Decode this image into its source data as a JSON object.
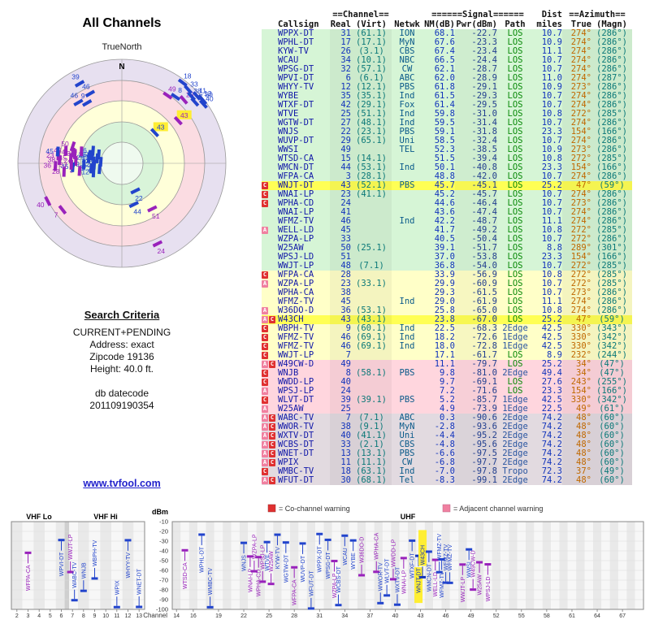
{
  "title": "All Channels",
  "radar": {
    "north_label": "N",
    "orientation_label": "TrueNorth"
  },
  "search_criteria": {
    "heading": "Search Criteria",
    "lines": [
      "CURRENT+PENDING",
      "Address: exact",
      "Zipcode 19136",
      "Height: 40.0 ft."
    ],
    "db_label": "db datecode",
    "db_datecode": "201109190354"
  },
  "link": "www.tvfool.com",
  "legend": {
    "co": "= Co-channel warning",
    "adj": "= Adjacent channel warning"
  },
  "colors": {
    "g": "#d6f5d6",
    "y": "#ffffc8",
    "p": "#ffd6de",
    "x": "#e2dae0",
    "pend": "#ffff55",
    "co": "#e03030",
    "adj": "#f080a0",
    "blue": "#2244cc",
    "purple": "#9922bb",
    "link": "#2222cc",
    "az": "#c06800"
  },
  "table": {
    "group_headers": {
      "channel": "==Channel==",
      "signal": "======Signal======",
      "dist": "Dist",
      "azimuth": "==Azimuth=="
    },
    "columns": {
      "callsign": "Callsign",
      "real": "Real",
      "virt": "(Virt)",
      "netwk": "Netwk",
      "nm": "NM(dB)",
      "pwr": "Pwr(dBm)",
      "path": "Path",
      "miles": "miles",
      "true": "True",
      "magn": "(Magn)"
    },
    "rows": [
      {
        "f": "",
        "c": "WPPX-DT",
        "r": "31",
        "v": "(61.1)",
        "n": "ION",
        "nm": 68.1,
        "p": -22.7,
        "pa": "LOS",
        "mi": "10.7",
        "t": "274°",
        "m": "(286°)"
      },
      {
        "f": "",
        "c": "WPHL-DT",
        "r": "17",
        "v": "(17.1)",
        "n": "MyN",
        "nm": 67.6,
        "p": -23.3,
        "pa": "LOS",
        "mi": "10.9",
        "t": "274°",
        "m": "(286°)"
      },
      {
        "f": "",
        "c": "KYW-TV",
        "r": "26",
        "v": "(3.1)",
        "n": "CBS",
        "nm": 67.4,
        "p": -23.4,
        "pa": "LOS",
        "mi": "11.1",
        "t": "274°",
        "m": "(286°)"
      },
      {
        "f": "",
        "c": "WCAU",
        "r": "34",
        "v": "(10.1)",
        "n": "NBC",
        "nm": 66.5,
        "p": -24.4,
        "pa": "LOS",
        "mi": "10.7",
        "t": "274°",
        "m": "(286°)"
      },
      {
        "f": "",
        "c": "WPSG-DT",
        "r": "32",
        "v": "(57.1)",
        "n": "CW",
        "nm": 62.1,
        "p": -28.7,
        "pa": "LOS",
        "mi": "10.7",
        "t": "274°",
        "m": "(286°)"
      },
      {
        "f": "",
        "c": "WPVI-DT",
        "r": "6",
        "v": "(6.1)",
        "n": "ABC",
        "nm": 62.0,
        "p": -28.9,
        "pa": "LOS",
        "mi": "11.0",
        "t": "274°",
        "m": "(287°)"
      },
      {
        "f": "",
        "c": "WHYY-TV",
        "r": "12",
        "v": "(12.1)",
        "n": "PBS",
        "nm": 61.8,
        "p": -29.1,
        "pa": "LOS",
        "mi": "10.9",
        "t": "273°",
        "m": "(286°)"
      },
      {
        "f": "",
        "c": "WYBE",
        "r": "35",
        "v": "(35.1)",
        "n": "Ind",
        "nm": 61.5,
        "p": -29.3,
        "pa": "LOS",
        "mi": "10.7",
        "t": "274°",
        "m": "(286°)"
      },
      {
        "f": "",
        "c": "WTXF-DT",
        "r": "42",
        "v": "(29.1)",
        "n": "Fox",
        "nm": 61.4,
        "p": -29.5,
        "pa": "LOS",
        "mi": "10.7",
        "t": "274°",
        "m": "(286°)"
      },
      {
        "f": "",
        "c": "WTVE",
        "r": "25",
        "v": "(51.1)",
        "n": "Ind",
        "nm": 59.8,
        "p": -31.0,
        "pa": "LOS",
        "mi": "10.8",
        "t": "272°",
        "m": "(285°)"
      },
      {
        "f": "",
        "c": "WGTW-DT",
        "r": "27",
        "v": "(48.1)",
        "n": "Ind",
        "nm": 59.5,
        "p": -31.4,
        "pa": "LOS",
        "mi": "10.7",
        "t": "274°",
        "m": "(286°)"
      },
      {
        "f": "",
        "c": "WNJS",
        "r": "22",
        "v": "(23.1)",
        "n": "PBS",
        "nm": 59.1,
        "p": -31.8,
        "pa": "LOS",
        "mi": "23.3",
        "t": "154°",
        "m": "(166°)"
      },
      {
        "f": "",
        "c": "WUVP-DT",
        "r": "29",
        "v": "(65.1)",
        "n": "Uni",
        "nm": 58.5,
        "p": -32.4,
        "pa": "LOS",
        "mi": "10.7",
        "t": "274°",
        "m": "(286°)"
      },
      {
        "f": "",
        "c": "WWSI",
        "r": "49",
        "v": "",
        "n": "TEL",
        "nm": 52.3,
        "p": -38.5,
        "pa": "LOS",
        "mi": "10.9",
        "t": "273°",
        "m": "(286°)"
      },
      {
        "f": "",
        "c": "WTSD-CA",
        "r": "15",
        "v": "(14.1)",
        "n": "",
        "nm": 51.5,
        "p": -39.4,
        "pa": "LOS",
        "mi": "10.8",
        "t": "272°",
        "m": "(285°)"
      },
      {
        "f": "",
        "c": "WMCN-DT",
        "r": "44",
        "v": "(53.1)",
        "n": "Ind",
        "nm": 50.1,
        "p": -40.8,
        "pa": "LOS",
        "mi": "23.3",
        "t": "154°",
        "m": "(166°)"
      },
      {
        "f": "",
        "c": "WFPA-CA",
        "r": "3",
        "v": "(28.1)",
        "n": "",
        "nm": 48.8,
        "p": -42.0,
        "pa": "LOS",
        "mi": "10.7",
        "t": "274°",
        "m": "(286°)"
      },
      {
        "f": "C",
        "c": "WNJT-DT",
        "r": "43",
        "v": "(52.1)",
        "n": "PBS",
        "nm": 45.7,
        "p": -45.1,
        "pa": "LOS",
        "mi": "25.2",
        "t": "47°",
        "m": "(59°)",
        "pend": true
      },
      {
        "f": "C",
        "c": "WNAI-LP",
        "r": "23",
        "v": "(41.1)",
        "n": "",
        "nm": 45.2,
        "p": -45.7,
        "pa": "LOS",
        "mi": "10.7",
        "t": "274°",
        "m": "(286°)"
      },
      {
        "f": "C",
        "c": "WPHA-CD",
        "r": "24",
        "v": "",
        "n": "",
        "nm": 44.6,
        "p": -46.4,
        "pa": "LOS",
        "mi": "10.7",
        "t": "273°",
        "m": "(286°)"
      },
      {
        "f": "",
        "c": "WNAI-LP",
        "r": "41",
        "v": "",
        "n": "",
        "nm": 43.6,
        "p": -47.4,
        "pa": "LOS",
        "mi": "10.7",
        "t": "274°",
        "m": "(286°)"
      },
      {
        "f": "",
        "c": "WFMZ-TV",
        "r": "46",
        "v": "",
        "n": "Ind",
        "nm": 42.2,
        "p": -48.7,
        "pa": "LOS",
        "mi": "11.1",
        "t": "274°",
        "m": "(286°)"
      },
      {
        "f": "A",
        "c": "WELL-LD",
        "r": "45",
        "v": "",
        "n": "",
        "nm": 41.7,
        "p": -49.2,
        "pa": "LOS",
        "mi": "10.8",
        "t": "272°",
        "m": "(285°)"
      },
      {
        "f": "",
        "c": "WZPA-LP",
        "r": "33",
        "v": "",
        "n": "",
        "nm": 40.5,
        "p": -50.4,
        "pa": "LOS",
        "mi": "10.7",
        "t": "272°",
        "m": "(286°)"
      },
      {
        "f": "",
        "c": "W25AW",
        "r": "50",
        "v": "(25.1)",
        "n": "",
        "nm": 39.1,
        "p": -51.7,
        "pa": "LOS",
        "mi": "8.8",
        "t": "289°",
        "m": "(301°)"
      },
      {
        "f": "",
        "c": "WPSJ-LD",
        "r": "51",
        "v": "",
        "n": "",
        "nm": 37.0,
        "p": -53.8,
        "pa": "LOS",
        "mi": "23.3",
        "t": "154°",
        "m": "(166°)"
      },
      {
        "f": "",
        "c": "WWJT-LP",
        "r": "48",
        "v": "(7.1)",
        "n": "",
        "nm": 36.8,
        "p": -54.0,
        "pa": "LOS",
        "mi": "10.7",
        "t": "272°",
        "m": "(285°)"
      },
      {
        "f": "C",
        "c": "WFPA-CA",
        "r": "28",
        "v": "",
        "n": "",
        "nm": 33.9,
        "p": -56.9,
        "pa": "LOS",
        "mi": "10.8",
        "t": "272°",
        "m": "(285°)"
      },
      {
        "f": "A",
        "c": "WZPA-LP",
        "r": "23",
        "v": "(33.1)",
        "n": "",
        "nm": 29.9,
        "p": -60.9,
        "pa": "LOS",
        "mi": "10.7",
        "t": "272°",
        "m": "(285°)"
      },
      {
        "f": "",
        "c": "WPHA-CA",
        "r": "38",
        "v": "",
        "n": "",
        "nm": 29.3,
        "p": -61.5,
        "pa": "LOS",
        "mi": "10.7",
        "t": "273°",
        "m": "(286°)"
      },
      {
        "f": "",
        "c": "WFMZ-TV",
        "r": "45",
        "v": "",
        "n": "Ind",
        "nm": 29.0,
        "p": -61.9,
        "pa": "LOS",
        "mi": "11.1",
        "t": "274°",
        "m": "(286°)"
      },
      {
        "f": "A",
        "c": "W36DO-D",
        "r": "36",
        "v": "(53.1)",
        "n": "",
        "nm": 25.8,
        "p": -65.0,
        "pa": "LOS",
        "mi": "10.8",
        "t": "274°",
        "m": "(286°)"
      },
      {
        "f": "AC",
        "c": "W43CH",
        "r": "43",
        "v": "(43.1)",
        "n": "",
        "nm": 23.8,
        "p": -67.0,
        "pa": "LOS",
        "mi": "25.2",
        "t": "47°",
        "m": "(59°)",
        "pend": true
      },
      {
        "f": "C",
        "c": "WBPH-TV",
        "r": "9",
        "v": "(60.1)",
        "n": "Ind",
        "nm": 22.5,
        "p": -68.3,
        "pa": "2Edge",
        "mi": "42.5",
        "t": "330°",
        "m": "(343°)"
      },
      {
        "f": "C",
        "c": "WFMZ-TV",
        "r": "46",
        "v": "(69.1)",
        "n": "Ind",
        "nm": 18.2,
        "p": -72.6,
        "pa": "1Edge",
        "mi": "42.5",
        "t": "330°",
        "m": "(342°)"
      },
      {
        "f": "C",
        "c": "WFMZ-TV",
        "r": "46",
        "v": "(69.1)",
        "n": "Ind",
        "nm": 18.0,
        "p": -72.8,
        "pa": "1Edge",
        "mi": "42.5",
        "t": "330°",
        "m": "(342°)"
      },
      {
        "f": "C",
        "c": "WWJT-LP",
        "r": "7",
        "v": "",
        "n": "",
        "nm": 17.1,
        "p": -61.7,
        "pa": "LOS",
        "mi": "8.9",
        "t": "232°",
        "m": "(244°)"
      },
      {
        "f": "AC",
        "c": "W49CW-D",
        "r": "49",
        "v": "",
        "n": "",
        "nm": 11.1,
        "p": -79.7,
        "pa": "LOS",
        "mi": "25.2",
        "t": "34°",
        "m": "(47°)"
      },
      {
        "f": "C",
        "c": "WNJB",
        "r": "8",
        "v": "(58.1)",
        "n": "PBS",
        "nm": 9.8,
        "p": -81.0,
        "pa": "2Edge",
        "mi": "49.4",
        "t": "34°",
        "m": "(47°)"
      },
      {
        "f": "C",
        "c": "WWDD-LP",
        "r": "40",
        "v": "",
        "n": "",
        "nm": 9.7,
        "p": -69.1,
        "pa": "LOS",
        "mi": "27.6",
        "t": "243°",
        "m": "(255°)"
      },
      {
        "f": "A",
        "c": "WPSJ-LP",
        "r": "24",
        "v": "",
        "n": "",
        "nm": 7.2,
        "p": -71.6,
        "pa": "LOS",
        "mi": "23.3",
        "t": "154°",
        "m": "(166°)"
      },
      {
        "f": "C",
        "c": "WLVT-DT",
        "r": "39",
        "v": "(39.1)",
        "n": "PBS",
        "nm": 5.2,
        "p": -85.7,
        "pa": "1Edge",
        "mi": "42.5",
        "t": "330°",
        "m": "(342°)"
      },
      {
        "f": "A",
        "c": "W25AW",
        "r": "25",
        "v": "",
        "n": "",
        "nm": 4.9,
        "p": -73.9,
        "pa": "1Edge",
        "mi": "22.5",
        "t": "49°",
        "m": "(61°)"
      },
      {
        "f": "AC",
        "c": "WABC-TV",
        "r": "7",
        "v": "(7.1)",
        "n": "ABC",
        "nm": 0.3,
        "p": -90.6,
        "pa": "2Edge",
        "mi": "74.2",
        "t": "48°",
        "m": "(60°)"
      },
      {
        "f": "AC",
        "c": "WWOR-TV",
        "r": "38",
        "v": "(9.1)",
        "n": "MyN",
        "nm": -2.8,
        "p": -93.6,
        "pa": "2Edge",
        "mi": "74.2",
        "t": "48°",
        "m": "(60°)"
      },
      {
        "f": "AC",
        "c": "WXTV-DT",
        "r": "40",
        "v": "(41.1)",
        "n": "Uni",
        "nm": -4.4,
        "p": -95.2,
        "pa": "2Edge",
        "mi": "74.2",
        "t": "48°",
        "m": "(60°)"
      },
      {
        "f": "AC",
        "c": "WCBS-DT",
        "r": "33",
        "v": "(2.1)",
        "n": "CBS",
        "nm": -4.8,
        "p": -95.6,
        "pa": "2Edge",
        "mi": "74.2",
        "t": "48°",
        "m": "(60°)"
      },
      {
        "f": "AC",
        "c": "WNET-DT",
        "r": "13",
        "v": "(13.1)",
        "n": "PBS",
        "nm": -6.6,
        "p": -97.5,
        "pa": "2Edge",
        "mi": "74.2",
        "t": "48°",
        "m": "(60°)"
      },
      {
        "f": "AC",
        "c": "WPIX",
        "r": "11",
        "v": "(11.1)",
        "n": "CW",
        "nm": -6.8,
        "p": -97.7,
        "pa": "2Edge",
        "mi": "74.2",
        "t": "48°",
        "m": "(60°)"
      },
      {
        "f": "C",
        "c": "WMBC-TV",
        "r": "18",
        "v": "(63.1)",
        "n": "Ind",
        "nm": -7.0,
        "p": -97.8,
        "pa": "Tropo",
        "mi": "72.3",
        "t": "37°",
        "m": "(49°)"
      },
      {
        "f": "AC",
        "c": "WFUT-DT",
        "r": "30",
        "v": "(68.1)",
        "n": "Tel",
        "nm": -8.3,
        "p": -99.1,
        "pa": "2Edge",
        "mi": "74.2",
        "t": "48°",
        "m": "(60°)"
      }
    ]
  },
  "chart_data": [
    {
      "type": "radar",
      "title": "All Channels",
      "orientation": "TrueNorth",
      "angle_field": "t",
      "strength_field": "nm",
      "stations_ref": "table.rows"
    },
    {
      "type": "scatter",
      "xlabel": "Channel",
      "ylabel": "dBm",
      "ylim": [
        -100,
        -10
      ],
      "x_field": "r",
      "y_field": "p",
      "bands": {
        "vhf_lo": "VHF Lo",
        "vhf_hi": "VHF Hi",
        "uhf": "UHF"
      },
      "y_ticks": [
        -10,
        -20,
        -30,
        -40,
        -50,
        -60,
        -70,
        -80,
        -90,
        -100
      ],
      "vhf_ticks": [
        2,
        3,
        4,
        5,
        6,
        7,
        8,
        9,
        10,
        11,
        12,
        13
      ],
      "uhf_ticks": [
        14,
        16,
        19,
        22,
        25,
        28,
        31,
        34,
        37,
        40,
        43,
        46,
        49,
        52,
        55,
        58,
        61,
        64,
        67
      ],
      "stations_ref": "table.rows"
    }
  ]
}
